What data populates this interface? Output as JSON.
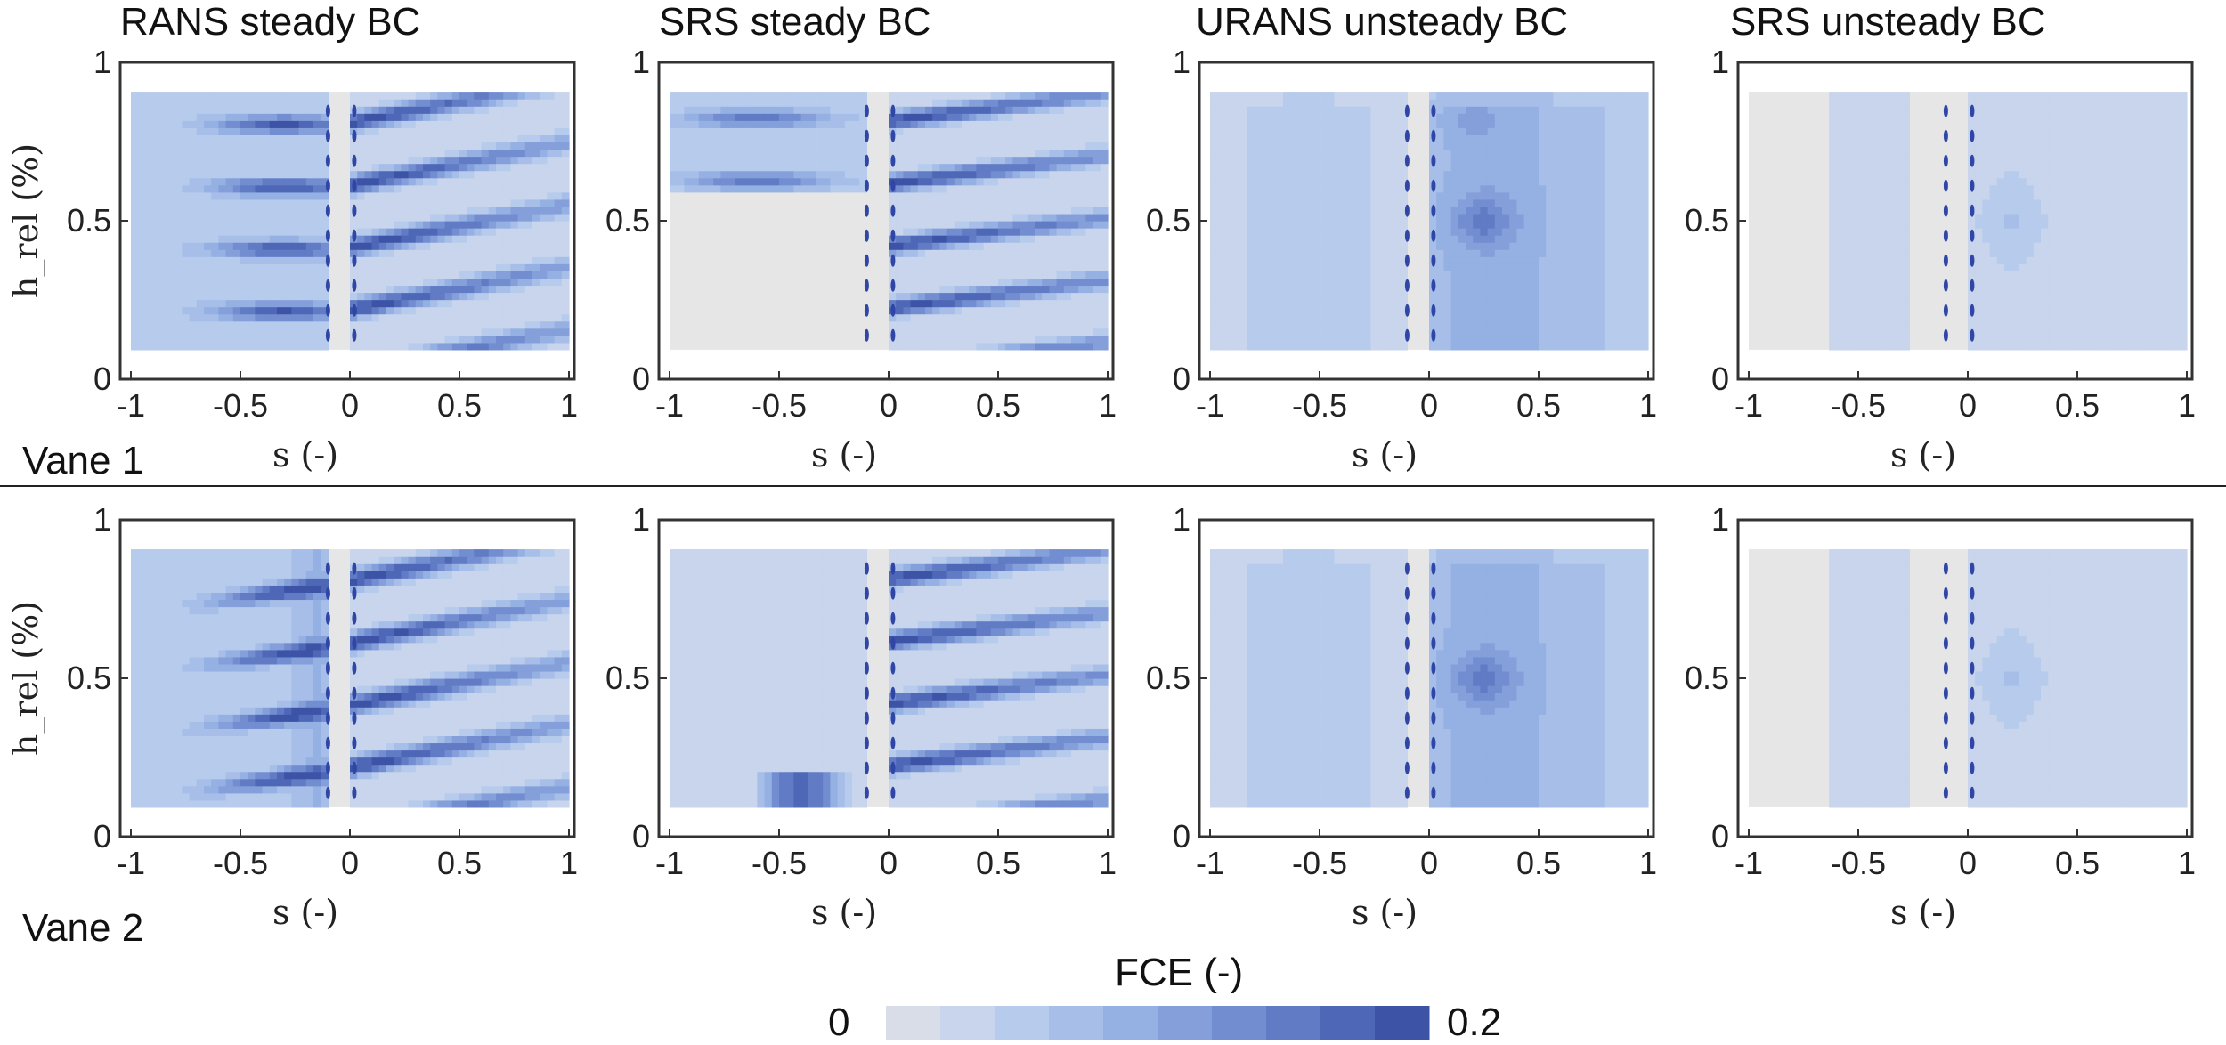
{
  "figure": {
    "column_titles": [
      "RANS steady BC",
      "SRS steady BC",
      "URANS unsteady BC",
      "SRS unsteady BC"
    ],
    "row_labels": [
      "Vane 1",
      "Vane 2"
    ],
    "colorbar": {
      "title": "FCE (-)",
      "min_label": "0",
      "max_label": "0.2",
      "levels": [
        "#d9dde7",
        "#c8d5ec",
        "#b7cbed",
        "#a6bee8",
        "#95b0e2",
        "#849fda",
        "#738dd1",
        "#617bc5",
        "#4f67b7",
        "#3d53a6"
      ]
    },
    "colors": {
      "background_region": "#e6e6e6",
      "axes": "#333333"
    }
  },
  "chart_data": [
    {
      "type": "heatmap",
      "title": "RANS steady BC",
      "row": "Vane 1",
      "xlabel": "s (-)",
      "ylabel": "h_rel (%)",
      "xlim": [
        -1,
        1
      ],
      "ylim": [
        0,
        1
      ],
      "xticks": [
        "-1",
        "-0.5",
        "0",
        "0.5",
        "1"
      ],
      "yticks": [
        "0",
        "0.5",
        "1"
      ],
      "colorbar_range": [
        0,
        0.2
      ],
      "peak_fce": 0.2
    },
    {
      "type": "heatmap",
      "title": "SRS steady BC",
      "row": "Vane 1",
      "xlabel": "s (-)",
      "ylabel": "",
      "xlim": [
        -1,
        1
      ],
      "ylim": [
        0,
        1
      ],
      "xticks": [
        "-1",
        "-0.5",
        "0",
        "0.5",
        "1"
      ],
      "yticks": [
        "0",
        "0.5",
        "1"
      ],
      "colorbar_range": [
        0,
        0.2
      ],
      "peak_fce": 0.2
    },
    {
      "type": "heatmap",
      "title": "URANS unsteady BC",
      "row": "Vane 1",
      "xlabel": "s (-)",
      "ylabel": "",
      "xlim": [
        -1,
        1
      ],
      "ylim": [
        0,
        1
      ],
      "xticks": [
        "-1",
        "-0.5",
        "0",
        "0.5",
        "1"
      ],
      "yticks": [
        "0",
        "0.5",
        "1"
      ],
      "colorbar_range": [
        0,
        0.2
      ],
      "peak_fce": 0.16
    },
    {
      "type": "heatmap",
      "title": "SRS unsteady BC",
      "row": "Vane 1",
      "xlabel": "s (-)",
      "ylabel": "",
      "xlim": [
        -1,
        1
      ],
      "ylim": [
        0,
        1
      ],
      "xticks": [
        "-1",
        "-0.5",
        "0",
        "0.5",
        "1"
      ],
      "yticks": [
        "0",
        "0.5",
        "1"
      ],
      "colorbar_range": [
        0,
        0.2
      ],
      "peak_fce": 0.1
    },
    {
      "type": "heatmap",
      "title": "RANS steady BC",
      "row": "Vane 2",
      "xlabel": "s (-)",
      "ylabel": "h_rel (%)",
      "xlim": [
        -1,
        1
      ],
      "ylim": [
        0,
        1
      ],
      "xticks": [
        "-1",
        "-0.5",
        "0",
        "0.5",
        "1"
      ],
      "yticks": [
        "0",
        "0.5",
        "1"
      ],
      "colorbar_range": [
        0,
        0.2
      ],
      "peak_fce": 0.2
    },
    {
      "type": "heatmap",
      "title": "SRS steady BC",
      "row": "Vane 2",
      "xlabel": "s (-)",
      "ylabel": "",
      "xlim": [
        -1,
        1
      ],
      "ylim": [
        0,
        1
      ],
      "xticks": [
        "-1",
        "-0.5",
        "0",
        "0.5",
        "1"
      ],
      "yticks": [
        "0",
        "0.5",
        "1"
      ],
      "colorbar_range": [
        0,
        0.2
      ],
      "peak_fce": 0.2
    },
    {
      "type": "heatmap",
      "title": "URANS unsteady BC",
      "row": "Vane 2",
      "xlabel": "s (-)",
      "ylabel": "",
      "xlim": [
        -1,
        1
      ],
      "ylim": [
        0,
        1
      ],
      "xticks": [
        "-1",
        "-0.5",
        "0",
        "0.5",
        "1"
      ],
      "yticks": [
        "0",
        "0.5",
        "1"
      ],
      "colorbar_range": [
        0,
        0.2
      ],
      "peak_fce": 0.16
    },
    {
      "type": "heatmap",
      "title": "SRS unsteady BC",
      "row": "Vane 2",
      "xlabel": "s (-)",
      "ylabel": "",
      "xlim": [
        -1,
        1
      ],
      "ylim": [
        0,
        1
      ],
      "xticks": [
        "-1",
        "-0.5",
        "0",
        "0.5",
        "1"
      ],
      "yticks": [
        "0",
        "0.5",
        "1"
      ],
      "colorbar_range": [
        0,
        0.2
      ],
      "peak_fce": 0.1
    }
  ]
}
